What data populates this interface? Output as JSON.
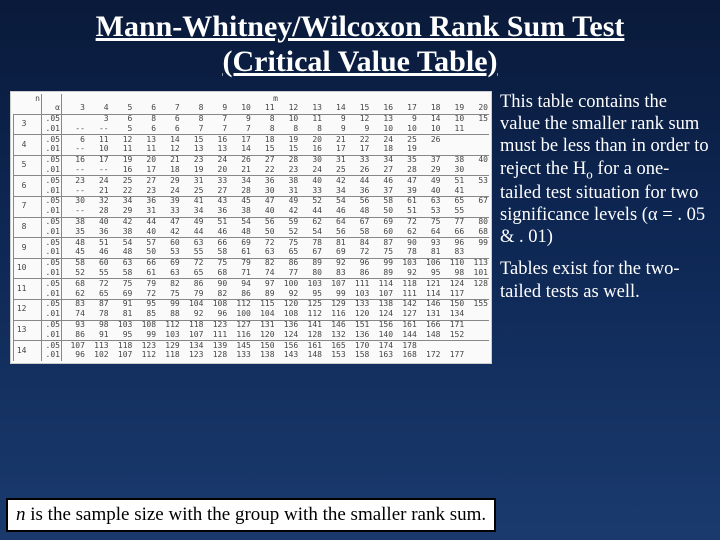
{
  "title": "Mann-Whitney/Wilcoxon Rank Sum Test (Critical Value Table)",
  "desc_p1_a": "This table contains the value the smaller rank sum must be less than in order to reject the H",
  "desc_p1_sub": "o",
  "desc_p1_b": " for a one-tailed test situation for two significance levels (α = . 05 & . 01)",
  "desc_p2": "Tables exist for the two-tailed tests as well.",
  "footnote_a": "n",
  "footnote_b": " is the sample size with the group with the smaller rank sum.",
  "table": {
    "n_header": "n",
    "a_header": "α",
    "m_header": "m",
    "m_cols": [
      3,
      4,
      5,
      6,
      7,
      8,
      9,
      10,
      11,
      12,
      13,
      14,
      15,
      16,
      17,
      18,
      19,
      20
    ],
    "groups": [
      {
        "n": 3,
        "rows": [
          {
            "a": ".05",
            "v": [
              "",
              "3",
              "6",
              "8",
              "6",
              "8",
              "7",
              "9",
              "8",
              "10",
              "11",
              "9",
              "12",
              "13",
              "9",
              "14",
              "10",
              "15"
            ]
          },
          {
            "a": ".01",
            "v": [
              "--",
              "--",
              "5",
              "6",
              "6",
              "7",
              "7",
              "7",
              "8",
              "8",
              "8",
              "9",
              "9",
              "10",
              "10",
              "10",
              "11",
              " "
            ]
          }
        ]
      },
      {
        "n": 4,
        "rows": [
          {
            "a": ".05",
            "v": [
              "6",
              "11",
              "12",
              "13",
              "14",
              "15",
              "16",
              "17",
              "18",
              "19",
              "20",
              "21",
              "22",
              "24",
              "25",
              "26",
              " ",
              " "
            ]
          },
          {
            "a": ".01",
            "v": [
              "--",
              "10",
              "11",
              "11",
              "12",
              "13",
              "13",
              "14",
              "15",
              "15",
              "16",
              "17",
              "17",
              "18",
              "19",
              " ",
              " ",
              " "
            ]
          }
        ]
      },
      {
        "n": 5,
        "rows": [
          {
            "a": ".05",
            "v": [
              "16",
              "17",
              "19",
              "20",
              "21",
              "23",
              "24",
              "26",
              "27",
              "28",
              "30",
              "31",
              "33",
              "34",
              "35",
              "37",
              "38",
              "40"
            ]
          },
          {
            "a": ".01",
            "v": [
              "--",
              "--",
              "16",
              "17",
              "18",
              "19",
              "20",
              "21",
              "22",
              "23",
              "24",
              "25",
              "26",
              "27",
              "28",
              "29",
              "30",
              " "
            ]
          }
        ]
      },
      {
        "n": 6,
        "rows": [
          {
            "a": ".05",
            "v": [
              "23",
              "24",
              "25",
              "27",
              "29",
              "31",
              "33",
              "34",
              "36",
              "38",
              "40",
              "42",
              "44",
              "46",
              "47",
              "49",
              "51",
              "53"
            ]
          },
          {
            "a": ".01",
            "v": [
              "--",
              "21",
              "22",
              "23",
              "24",
              "25",
              "27",
              "28",
              "30",
              "31",
              "33",
              "34",
              "36",
              "37",
              "39",
              "40",
              "41",
              " "
            ]
          }
        ]
      },
      {
        "n": 7,
        "rows": [
          {
            "a": ".05",
            "v": [
              "30",
              "32",
              "34",
              "36",
              "39",
              "41",
              "43",
              "45",
              "47",
              "49",
              "52",
              "54",
              "56",
              "58",
              "61",
              "63",
              "65",
              "67"
            ]
          },
          {
            "a": ".01",
            "v": [
              "--",
              "28",
              "29",
              "31",
              "33",
              "34",
              "36",
              "38",
              "40",
              "42",
              "44",
              "46",
              "48",
              "50",
              "51",
              "53",
              "55",
              " "
            ]
          }
        ]
      },
      {
        "n": 8,
        "rows": [
          {
            "a": ".05",
            "v": [
              "38",
              "40",
              "42",
              "44",
              "47",
              "49",
              "51",
              "54",
              "56",
              "59",
              "62",
              "64",
              "67",
              "69",
              "72",
              "75",
              "77",
              "80"
            ]
          },
          {
            "a": ".01",
            "v": [
              "35",
              "36",
              "38",
              "40",
              "42",
              "44",
              "46",
              "48",
              "50",
              "52",
              "54",
              "56",
              "58",
              "60",
              "62",
              "64",
              "66",
              "68"
            ]
          }
        ]
      },
      {
        "n": 9,
        "rows": [
          {
            "a": ".05",
            "v": [
              "48",
              "51",
              "54",
              "57",
              "60",
              "63",
              "66",
              "69",
              "72",
              "75",
              "78",
              "81",
              "84",
              "87",
              "90",
              "93",
              "96",
              "99"
            ]
          },
          {
            "a": ".01",
            "v": [
              "45",
              "46",
              "48",
              "50",
              "53",
              "55",
              "58",
              "61",
              "63",
              "65",
              "67",
              "69",
              "72",
              "75",
              "78",
              "81",
              "83",
              " "
            ]
          }
        ]
      },
      {
        "n": 10,
        "rows": [
          {
            "a": ".05",
            "v": [
              "58",
              "60",
              "63",
              "66",
              "69",
              "72",
              "75",
              "79",
              "82",
              "86",
              "89",
              "92",
              "96",
              "99",
              "103",
              "106",
              "110",
              "113"
            ]
          },
          {
            "a": ".01",
            "v": [
              "52",
              "55",
              "58",
              "61",
              "63",
              "65",
              "68",
              "71",
              "74",
              "77",
              "80",
              "83",
              "86",
              "89",
              "92",
              "95",
              "98",
              "101"
            ]
          }
        ]
      },
      {
        "n": 11,
        "rows": [
          {
            "a": ".05",
            "v": [
              "68",
              "72",
              "75",
              "79",
              "82",
              "86",
              "90",
              "94",
              "97",
              "100",
              "103",
              "107",
              "111",
              "114",
              "118",
              "121",
              "124",
              "128"
            ]
          },
          {
            "a": ".01",
            "v": [
              "62",
              "65",
              "69",
              "72",
              "75",
              "79",
              "82",
              "86",
              "89",
              "92",
              "95",
              "99",
              "103",
              "107",
              "111",
              "114",
              "117",
              " "
            ]
          }
        ]
      },
      {
        "n": 12,
        "rows": [
          {
            "a": ".05",
            "v": [
              "83",
              "87",
              "91",
              "95",
              "99",
              "104",
              "108",
              "112",
              "115",
              "120",
              "125",
              "129",
              "133",
              "138",
              "142",
              "146",
              "150",
              "155"
            ]
          },
          {
            "a": ".01",
            "v": [
              "74",
              "78",
              "81",
              "85",
              "88",
              "92",
              "96",
              "100",
              "104",
              "108",
              "112",
              "116",
              "120",
              "124",
              "127",
              "131",
              "134",
              " "
            ]
          }
        ]
      },
      {
        "n": 13,
        "rows": [
          {
            "a": ".05",
            "v": [
              "93",
              "98",
              "103",
              "108",
              "112",
              "118",
              "123",
              "127",
              "131",
              "136",
              "141",
              "146",
              "151",
              "156",
              "161",
              "166",
              "171",
              " "
            ]
          },
          {
            "a": ".01",
            "v": [
              "86",
              "91",
              "95",
              "99",
              "103",
              "107",
              "111",
              "116",
              "120",
              "124",
              "128",
              "132",
              "136",
              "140",
              "144",
              "148",
              "152",
              " "
            ]
          }
        ]
      },
      {
        "n": 14,
        "rows": [
          {
            "a": ".05",
            "v": [
              "107",
              "113",
              "118",
              "123",
              "129",
              "134",
              "139",
              "145",
              "150",
              "156",
              "161",
              "165",
              "170",
              "174",
              "178",
              " ",
              " ",
              " "
            ]
          },
          {
            "a": ".01",
            "v": [
              "96",
              "102",
              "107",
              "112",
              "118",
              "123",
              "128",
              "133",
              "138",
              "143",
              "148",
              "153",
              "158",
              "163",
              "168",
              "172",
              "177",
              " "
            ]
          }
        ]
      }
    ]
  }
}
